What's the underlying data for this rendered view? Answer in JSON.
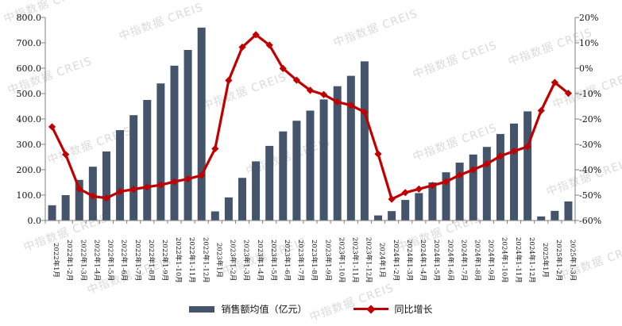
{
  "watermark": {
    "text": "中指数据 CREIS"
  },
  "legend": [
    {
      "label": "销售额均值（亿元）",
      "type": "bar",
      "color": "#44546A"
    },
    {
      "label": "同比增长",
      "type": "line",
      "color": "#C00000"
    }
  ],
  "chart_data": {
    "type": "combo",
    "title": "",
    "grid": false,
    "legend_position": "bottom",
    "categories": [
      "2022年1月",
      "2022年1-2月",
      "2022年1-3月",
      "2022年1-4月",
      "2022年1-5月",
      "2022年1-6月",
      "2022年1-7月",
      "2022年1-8月",
      "2022年1-9月",
      "2022年1-10月",
      "2022年1-11月",
      "2022年1-12月",
      "2023年1月",
      "2023年1-2月",
      "2023年1-3月",
      "2023年1-4月",
      "2023年1-5月",
      "2023年1-6月",
      "2023年1-7月",
      "2023年1-8月",
      "2023年1-9月",
      "2023年1-10月",
      "2023年1-11月",
      "2023年1-12月",
      "2024年1月",
      "2024年1-2月",
      "2024年1-3月",
      "2024年1-4月",
      "2024年1-5月",
      "2024年1-6月",
      "2024年1-7月",
      "2024年1-8月",
      "2024年1-9月",
      "2024年1-10月",
      "2024年1-11月",
      "2024年1-12月",
      "2025年1月",
      "2025年1-2月",
      "2025年1-3月"
    ],
    "series": [
      {
        "name": "销售额均值（亿元）",
        "type": "bar",
        "axis": "left",
        "color": "#44546A",
        "values": [
          60,
          100,
          160,
          212,
          272,
          356,
          415,
          475,
          540,
          610,
          672,
          760,
          36,
          91,
          168,
          233,
          294,
          351,
          393,
          433,
          477,
          529,
          570,
          627,
          20,
          37,
          81,
          108,
          150,
          190,
          228,
          260,
          290,
          341,
          382,
          430,
          16,
          38,
          75
        ]
      },
      {
        "name": "同比增长",
        "type": "line",
        "axis": "right",
        "color": "#C00000",
        "values": [
          -23.1,
          -34.0,
          -47.5,
          -50.4,
          -51.2,
          -48.6,
          -47.7,
          -46.8,
          -46.0,
          -44.7,
          -43.6,
          -42.2,
          -31.7,
          -4.8,
          8.3,
          13.2,
          9.1,
          -0.1,
          -4.7,
          -8.7,
          -10.4,
          -13.3,
          -14.6,
          -17.3,
          -33.8,
          -51.6,
          -49.0,
          -47.6,
          -46.2,
          -44.7,
          -42.1,
          -40.0,
          -37.7,
          -34.6,
          -32.7,
          -30.9,
          -16.7,
          -5.6,
          -9.9
        ]
      }
    ],
    "left_axis": {
      "min": 0,
      "max": 800,
      "step": 100,
      "tick_labels": [
        "800.0",
        "700.0",
        "600.0",
        "500.0",
        "400.0",
        "300.0",
        "200.0",
        "100.0",
        "0.0"
      ]
    },
    "right_axis": {
      "min": -60,
      "max": 20,
      "step": 10,
      "format": "percent",
      "tick_labels": [
        "20%",
        "10%",
        "0%",
        "-10%",
        "-20%",
        "-30%",
        "-40%",
        "-50%",
        "-60%"
      ]
    }
  }
}
